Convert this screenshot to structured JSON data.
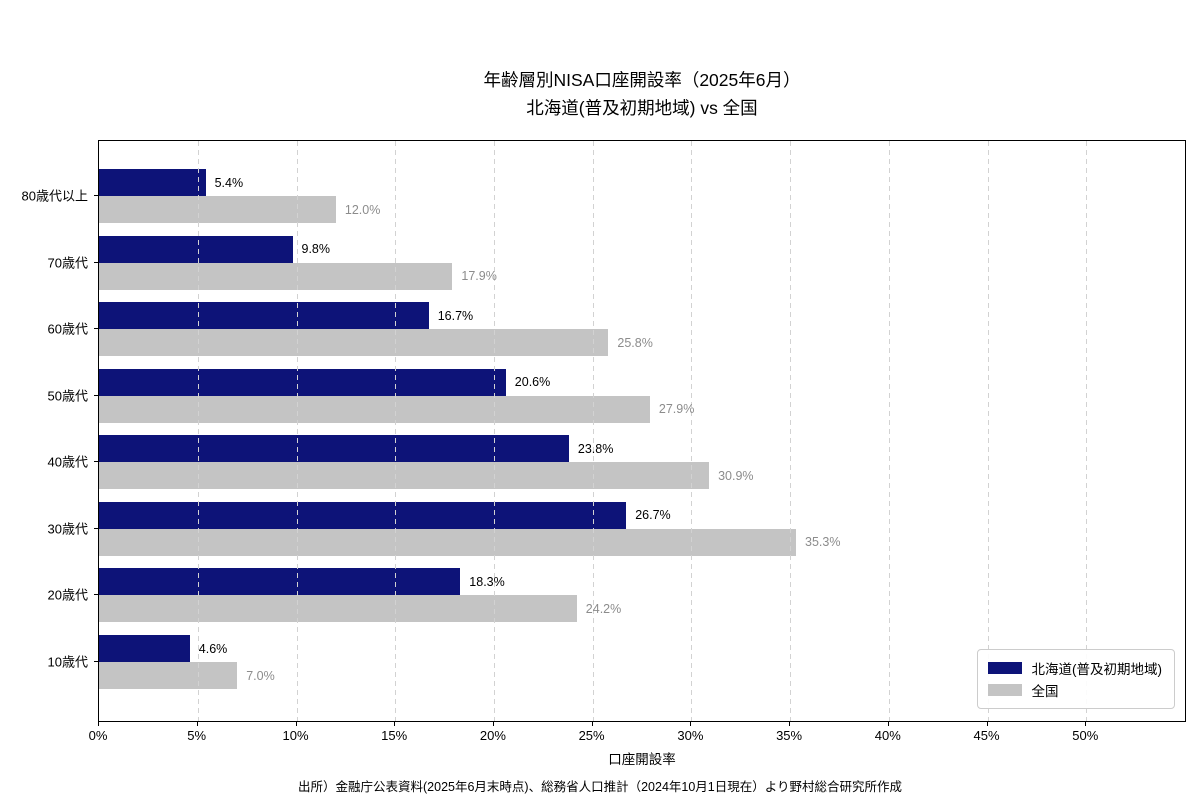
{
  "title": {
    "line1": "年齢層別NISA口座開設率（2025年6月）",
    "line2": "北海道(普及初期地域) vs 全国"
  },
  "chart_data": {
    "type": "bar",
    "orientation": "horizontal",
    "title": "年齢層別NISA口座開設率（2025年6月） 北海道(普及初期地域) vs 全国",
    "categories": [
      "80歳代以上",
      "70歳代",
      "60歳代",
      "50歳代",
      "40歳代",
      "30歳代",
      "20歳代",
      "10歳代"
    ],
    "series": [
      {
        "name": "北海道(普及初期地域)",
        "color": "#0d1378",
        "label_color": "#000000",
        "values": [
          5.4,
          9.8,
          16.7,
          20.6,
          23.8,
          26.7,
          18.3,
          4.6
        ]
      },
      {
        "name": "全国",
        "color": "#c4c4c4",
        "label_color": "#8c8c8c",
        "values": [
          12.0,
          17.9,
          25.8,
          27.9,
          30.9,
          35.3,
          24.2,
          7.0
        ]
      }
    ],
    "xlabel": "口座開設率",
    "xlim": [
      0,
      55
    ],
    "xticks": [
      "0%",
      "5%",
      "10%",
      "15%",
      "20%",
      "25%",
      "30%",
      "35%",
      "40%",
      "45%",
      "50%"
    ],
    "xtick_values": [
      0,
      5,
      10,
      15,
      20,
      25,
      30,
      35,
      40,
      45,
      50
    ],
    "grid": "dashed-vertical",
    "legend_position": "lower right",
    "value_suffix": "%",
    "value_decimals": 1
  },
  "source": "出所）金融庁公表資料(2025年6月末時点)、総務省人口推計（2024年10月1日現在）より野村総合研究所作成"
}
